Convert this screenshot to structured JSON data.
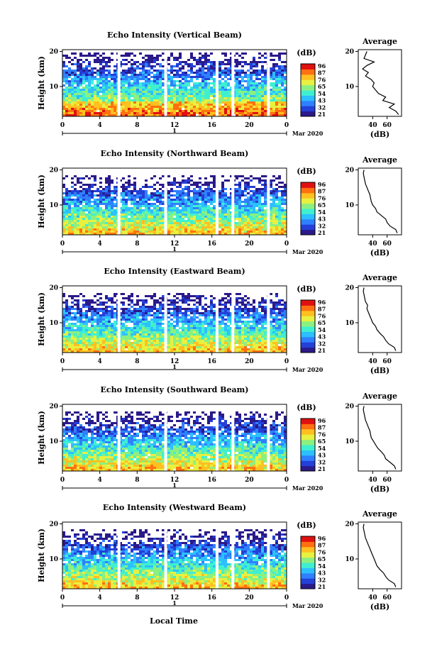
{
  "figure": {
    "x_axis_label": "Local Time",
    "date_label": "Mar 2020",
    "day_label": "1",
    "colorbar_unit": "(dB)",
    "colorbar_ticks": [
      "96",
      "87",
      "76",
      "65",
      "54",
      "43",
      "32",
      "21"
    ],
    "colorbar_colors": [
      "#2a1a8a",
      "#2340d8",
      "#2f80ff",
      "#2cc0ff",
      "#3ff0d0",
      "#8cf080",
      "#e8f040",
      "#ffc020",
      "#ff7010",
      "#e01010"
    ],
    "gap_hours": [
      5.9,
      10.9,
      16.4,
      18.1,
      21.9
    ]
  },
  "chart_data": [
    {
      "type": "heatmap",
      "title": "Echo Intensity (Vertical Beam)",
      "ylabel": "Height (km)",
      "x_ticks": [
        "0",
        "4",
        "8",
        "12",
        "16",
        "20",
        "0"
      ],
      "xlim": [
        0,
        24
      ],
      "y_ticks": [
        "20",
        "10"
      ],
      "ylim": [
        1.5,
        20.5
      ],
      "profile": {
        "title": "Average",
        "xlabel": "(dB)",
        "x_ticks": [
          "40",
          "60"
        ],
        "xlim": [
          20,
          80
        ],
        "heights": [
          2,
          3,
          4,
          5,
          6,
          7,
          8,
          9,
          10,
          11,
          12,
          13,
          14,
          15,
          16,
          17,
          18,
          19,
          20
        ],
        "values": [
          76,
          72,
          63,
          70,
          54,
          58,
          48,
          44,
          40,
          42,
          38,
          30,
          34,
          26,
          32,
          42,
          28,
          30,
          32
        ]
      }
    },
    {
      "type": "heatmap",
      "title": "Echo Intensity (Northward Beam)",
      "ylabel": "Height (km)",
      "x_ticks": [
        "0",
        "4",
        "8",
        "12",
        "16",
        "20",
        "0"
      ],
      "xlim": [
        0,
        24
      ],
      "y_ticks": [
        "20",
        "10"
      ],
      "ylim": [
        1.5,
        20.5
      ],
      "profile": {
        "title": "Average",
        "xlabel": "(dB)",
        "x_ticks": [
          "40",
          "60"
        ],
        "xlim": [
          20,
          80
        ],
        "heights": [
          2,
          3,
          4,
          5,
          6,
          7,
          8,
          9,
          10,
          11,
          12,
          13,
          14,
          15,
          16,
          17,
          18,
          19,
          20
        ],
        "values": [
          74,
          72,
          64,
          60,
          58,
          52,
          46,
          44,
          40,
          38,
          37,
          36,
          34,
          32,
          30,
          29,
          28,
          27,
          28
        ]
      }
    },
    {
      "type": "heatmap",
      "title": "Echo Intensity (Eastward Beam)",
      "ylabel": "Height (km)",
      "x_ticks": [
        "0",
        "4",
        "8",
        "12",
        "16",
        "20",
        "0"
      ],
      "xlim": [
        0,
        24
      ],
      "y_ticks": [
        "20",
        "10"
      ],
      "ylim": [
        1.5,
        20.5
      ],
      "profile": {
        "title": "Average",
        "xlabel": "(dB)",
        "x_ticks": [
          "40",
          "60"
        ],
        "xlim": [
          20,
          80
        ],
        "heights": [
          2,
          3,
          4,
          5,
          6,
          7,
          8,
          9,
          10,
          11,
          12,
          13,
          14,
          15,
          16,
          17,
          18,
          19,
          20
        ],
        "values": [
          72,
          70,
          62,
          58,
          55,
          50,
          46,
          44,
          40,
          38,
          36,
          34,
          32,
          33,
          30,
          29,
          28,
          27,
          28
        ]
      }
    },
    {
      "type": "heatmap",
      "title": "Echo Intensity (Southward Beam)",
      "ylabel": "Height (km)",
      "x_ticks": [
        "0",
        "4",
        "8",
        "12",
        "16",
        "20",
        "0"
      ],
      "xlim": [
        0,
        24
      ],
      "y_ticks": [
        "20",
        "10"
      ],
      "ylim": [
        1.5,
        20.5
      ],
      "profile": {
        "title": "Average",
        "xlabel": "(dB)",
        "x_ticks": [
          "40",
          "60"
        ],
        "xlim": [
          20,
          80
        ],
        "heights": [
          2,
          3,
          4,
          5,
          6,
          7,
          8,
          9,
          10,
          11,
          12,
          13,
          14,
          15,
          16,
          17,
          18,
          19,
          20
        ],
        "values": [
          72,
          70,
          64,
          58,
          56,
          52,
          47,
          44,
          41,
          38,
          37,
          36,
          34,
          32,
          30,
          29,
          28,
          27,
          28
        ]
      }
    },
    {
      "type": "heatmap",
      "title": "Echo Intensity (Westward Beam)",
      "ylabel": "Height (km)",
      "x_ticks": [
        "0",
        "4",
        "8",
        "12",
        "16",
        "20",
        "0"
      ],
      "xlim": [
        0,
        24
      ],
      "y_ticks": [
        "20",
        "10"
      ],
      "ylim": [
        1.5,
        20.5
      ],
      "profile": {
        "title": "Average",
        "xlabel": "(dB)",
        "x_ticks": [
          "40",
          "60"
        ],
        "xlim": [
          20,
          80
        ],
        "heights": [
          2,
          3,
          4,
          5,
          6,
          7,
          8,
          9,
          10,
          11,
          12,
          13,
          14,
          15,
          16,
          17,
          18,
          19,
          20
        ],
        "values": [
          72,
          70,
          62,
          58,
          55,
          50,
          46,
          44,
          42,
          40,
          38,
          36,
          34,
          32,
          30,
          29,
          28,
          27,
          28
        ]
      }
    }
  ]
}
